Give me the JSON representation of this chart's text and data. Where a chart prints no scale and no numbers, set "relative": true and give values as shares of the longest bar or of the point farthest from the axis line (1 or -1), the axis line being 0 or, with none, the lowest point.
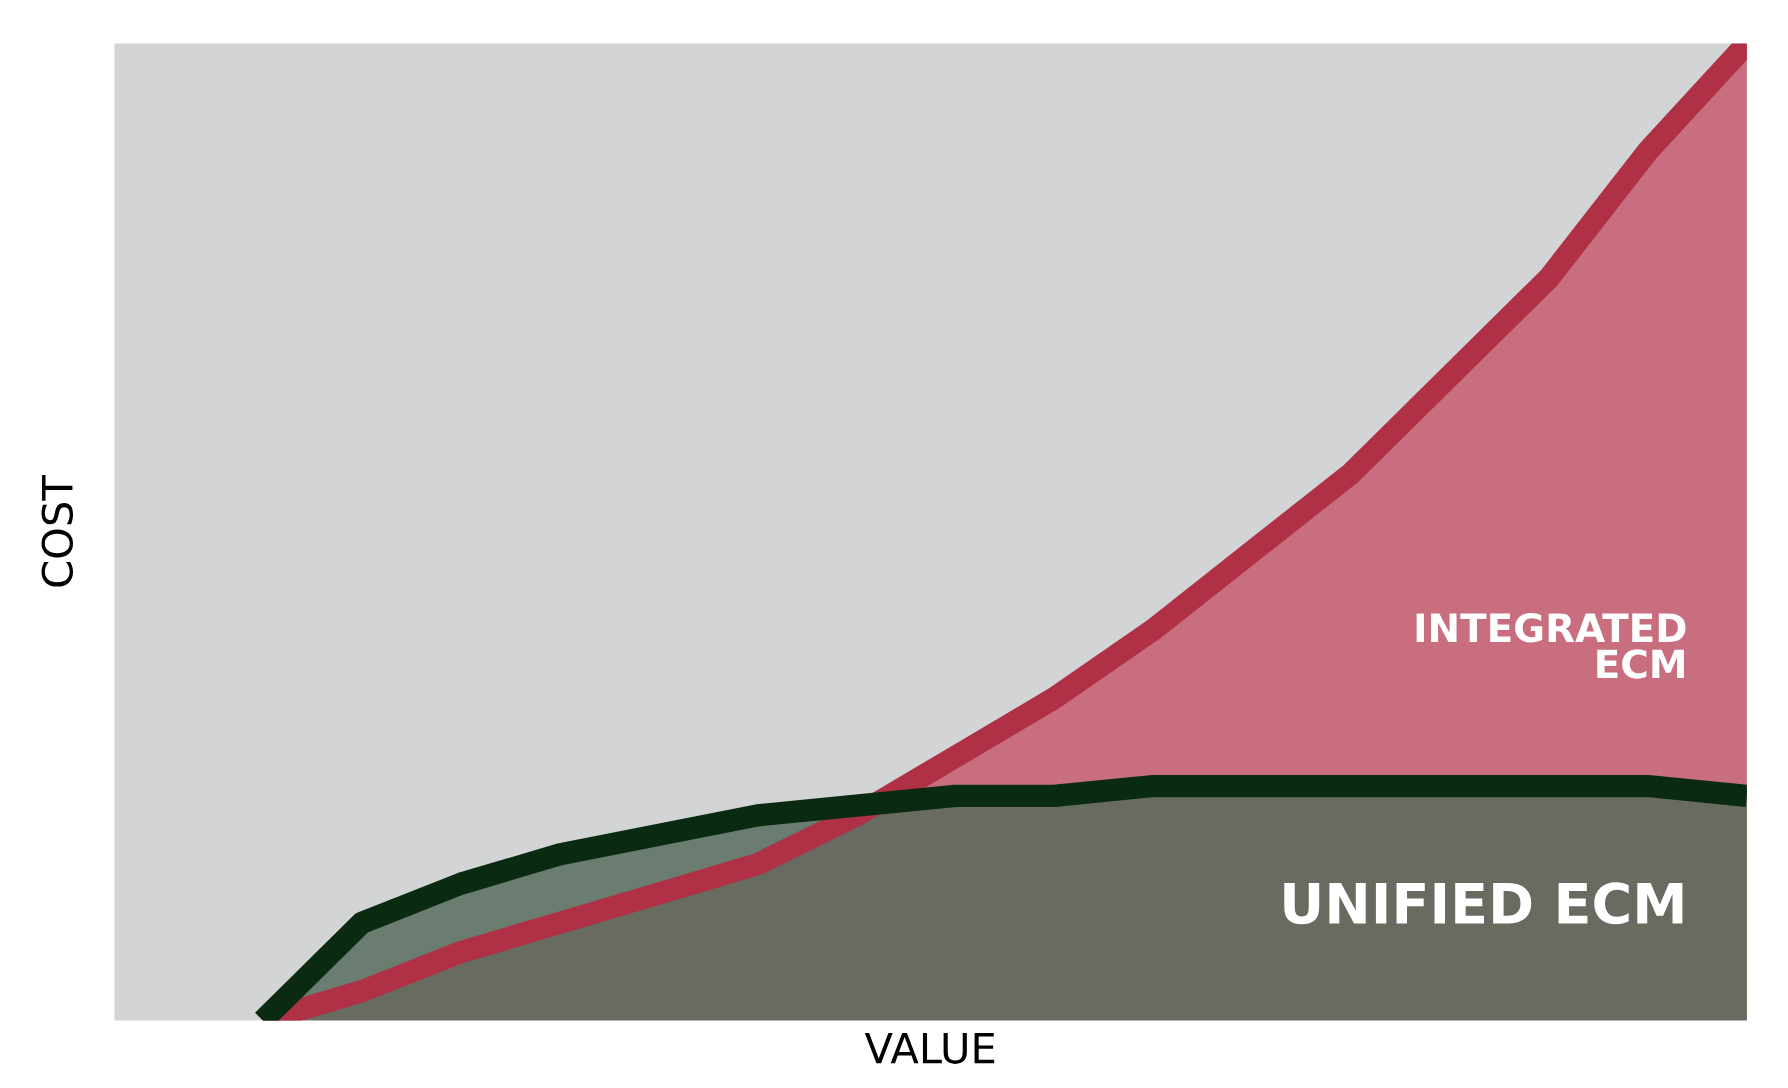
{
  "chart_data": {
    "type": "area",
    "relative": true,
    "xlabel": "VALUE",
    "ylabel": "COST",
    "categories": [
      null,
      null,
      null,
      null,
      null,
      null,
      null,
      null,
      null,
      null,
      null,
      null,
      null,
      null,
      null,
      null,
      null
    ],
    "series": [
      {
        "name": "INTEGRATED\nECM",
        "color": "#b03046",
        "values": [
          null,
          0,
          0.03,
          0.07,
          0.1,
          0.13,
          0.16,
          0.21,
          0.27,
          0.33,
          0.4,
          0.48,
          0.56,
          0.66,
          0.76,
          0.89,
          1
        ]
      },
      {
        "name": "UNIFIED ECM",
        "color": "#0a2a12",
        "values": [
          null,
          0,
          0.1,
          0.14,
          0.17,
          0.19,
          0.21,
          0.22,
          0.23,
          0.23,
          0.24,
          0.24,
          0.24,
          0.24,
          0.24,
          0.24,
          0.23
        ]
      }
    ],
    "legend": false
  }
}
